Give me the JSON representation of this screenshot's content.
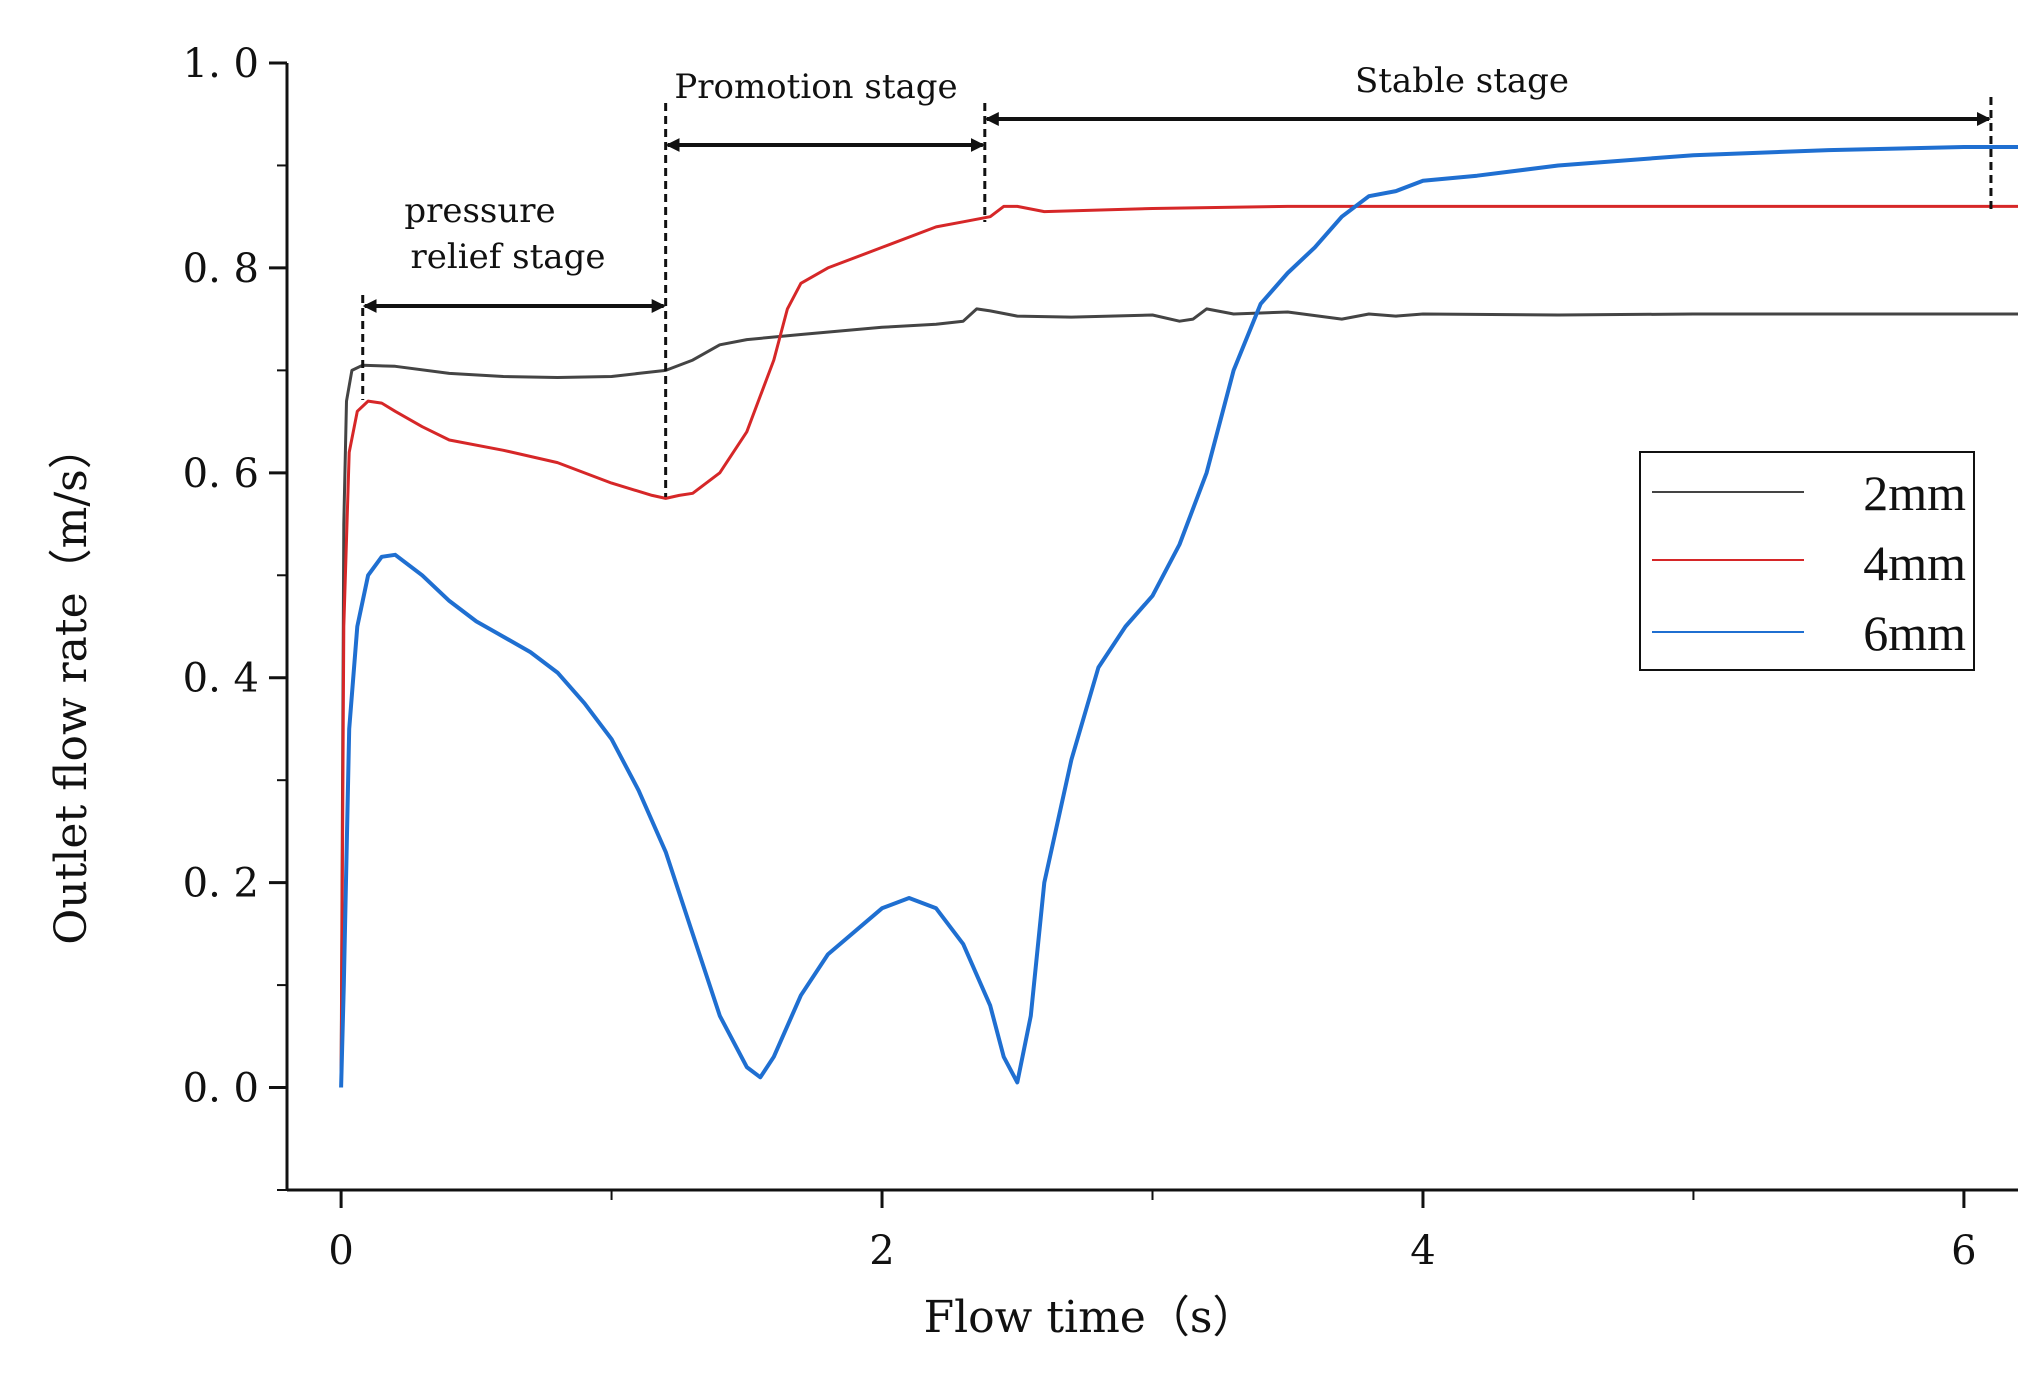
{
  "chart_data": {
    "type": "line",
    "xlabel": "Flow time（s）",
    "ylabel": "Outlet flow rate（m/s）",
    "xlim": [
      -0.2,
      6.2
    ],
    "ylim": [
      -0.1,
      1.0
    ],
    "x_ticks": [
      0,
      2,
      4,
      6
    ],
    "x_tick_labels": [
      "0",
      "2",
      "4",
      "6"
    ],
    "y_ticks": [
      0.0,
      0.2,
      0.4,
      0.6,
      0.8,
      1.0
    ],
    "y_tick_labels": [
      "0. 0",
      "0. 2",
      "0. 4",
      "0. 6",
      "0. 8",
      "1. 0"
    ],
    "legend_position": "right",
    "series": [
      {
        "name": "2mm",
        "color": "#444444",
        "x": [
          0,
          0.01,
          0.02,
          0.04,
          0.08,
          0.2,
          0.4,
          0.6,
          0.8,
          1.0,
          1.1,
          1.2,
          1.3,
          1.4,
          1.5,
          1.7,
          2.0,
          2.2,
          2.3,
          2.35,
          2.4,
          2.5,
          2.7,
          3.0,
          3.1,
          3.15,
          3.2,
          3.3,
          3.5,
          3.7,
          3.8,
          3.9,
          4.0,
          4.5,
          5.0,
          5.5,
          6.0,
          6.2
        ],
        "values": [
          0.0,
          0.55,
          0.67,
          0.7,
          0.705,
          0.704,
          0.697,
          0.694,
          0.693,
          0.694,
          0.697,
          0.7,
          0.71,
          0.725,
          0.73,
          0.735,
          0.742,
          0.745,
          0.748,
          0.76,
          0.758,
          0.753,
          0.752,
          0.754,
          0.748,
          0.75,
          0.76,
          0.755,
          0.757,
          0.75,
          0.755,
          0.753,
          0.755,
          0.754,
          0.755,
          0.755,
          0.755,
          0.755
        ]
      },
      {
        "name": "4mm",
        "color": "#d62728",
        "x": [
          0,
          0.01,
          0.03,
          0.06,
          0.1,
          0.15,
          0.2,
          0.3,
          0.4,
          0.6,
          0.8,
          1.0,
          1.15,
          1.2,
          1.25,
          1.3,
          1.4,
          1.5,
          1.6,
          1.65,
          1.7,
          1.8,
          2.0,
          2.2,
          2.3,
          2.4,
          2.45,
          2.5,
          2.6,
          3.0,
          3.5,
          4.0,
          4.5,
          5.0,
          6.0,
          6.2
        ],
        "values": [
          0.0,
          0.45,
          0.62,
          0.66,
          0.67,
          0.668,
          0.66,
          0.645,
          0.632,
          0.622,
          0.61,
          0.59,
          0.578,
          0.575,
          0.578,
          0.58,
          0.6,
          0.64,
          0.71,
          0.76,
          0.785,
          0.8,
          0.82,
          0.84,
          0.845,
          0.85,
          0.86,
          0.86,
          0.855,
          0.858,
          0.86,
          0.86,
          0.86,
          0.86,
          0.86,
          0.86
        ]
      },
      {
        "name": "6mm",
        "color": "#1f6fd1",
        "x": [
          0,
          0.01,
          0.03,
          0.06,
          0.1,
          0.15,
          0.2,
          0.3,
          0.4,
          0.5,
          0.6,
          0.7,
          0.8,
          0.9,
          1.0,
          1.1,
          1.2,
          1.3,
          1.4,
          1.5,
          1.55,
          1.6,
          1.7,
          1.8,
          2.0,
          2.1,
          2.2,
          2.3,
          2.4,
          2.45,
          2.5,
          2.55,
          2.6,
          2.7,
          2.8,
          2.9,
          3.0,
          3.1,
          3.2,
          3.3,
          3.4,
          3.5,
          3.6,
          3.7,
          3.8,
          3.9,
          4.0,
          4.2,
          4.5,
          5.0,
          5.5,
          6.0,
          6.2
        ],
        "values": [
          0.0,
          0.1,
          0.35,
          0.45,
          0.5,
          0.518,
          0.52,
          0.5,
          0.475,
          0.455,
          0.44,
          0.425,
          0.405,
          0.375,
          0.34,
          0.29,
          0.23,
          0.15,
          0.07,
          0.02,
          0.01,
          0.03,
          0.09,
          0.13,
          0.175,
          0.185,
          0.175,
          0.14,
          0.08,
          0.03,
          0.005,
          0.07,
          0.2,
          0.32,
          0.41,
          0.45,
          0.48,
          0.53,
          0.6,
          0.7,
          0.765,
          0.795,
          0.82,
          0.85,
          0.87,
          0.875,
          0.885,
          0.89,
          0.9,
          0.91,
          0.915,
          0.918,
          0.918
        ]
      }
    ],
    "annotations": {
      "pressure_relief_line1": "pressure",
      "pressure_relief_line2": "relief stage",
      "promotion": "Promotion stage",
      "stable": "Stable stage"
    },
    "stage_boundaries": [
      0.08,
      1.2,
      2.38,
      6.1
    ]
  }
}
